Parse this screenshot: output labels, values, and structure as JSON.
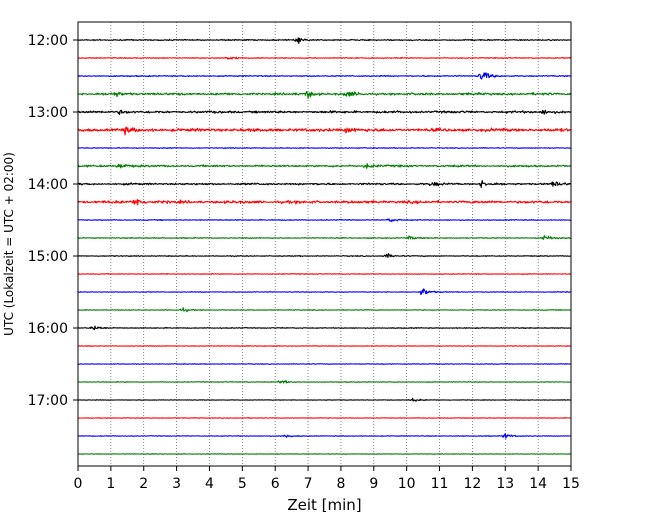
{
  "chart_data": {
    "type": "line",
    "title": "",
    "xlabel": "Zeit  [min]",
    "ylabel": "UTC (Lokalzeit = UTC + 02:00)",
    "xlim": [
      0,
      15
    ],
    "x_ticks": [
      "0",
      "1",
      "2",
      "3",
      "4",
      "5",
      "6",
      "7",
      "8",
      "9",
      "10",
      "11",
      "12",
      "13",
      "14",
      "15"
    ],
    "y_ticks": [
      {
        "time": "12:00",
        "trace_index": 0
      },
      {
        "time": "13:00",
        "trace_index": 4
      },
      {
        "time": "14:00",
        "trace_index": 8
      },
      {
        "time": "15:00",
        "trace_index": 12
      },
      {
        "time": "16:00",
        "trace_index": 16
      },
      {
        "time": "17:00",
        "trace_index": 20
      }
    ],
    "grid": "vertical dotted lines at each minute",
    "trace_colors": [
      "#000000",
      "#ff0000",
      "#0000ff",
      "#008000"
    ],
    "traces": [
      {
        "start": "12:00",
        "color": "#000000",
        "amplitude": 2.0,
        "events": [
          [
            6.7,
            4
          ]
        ]
      },
      {
        "start": "12:15",
        "color": "#ff0000",
        "amplitude": 1.5,
        "events": [
          [
            4.6,
            3
          ]
        ]
      },
      {
        "start": "12:30",
        "color": "#0000ff",
        "amplitude": 2.0,
        "events": [
          [
            12.3,
            10
          ]
        ]
      },
      {
        "start": "12:45",
        "color": "#008000",
        "amplitude": 3.0,
        "events": [
          [
            7.0,
            5
          ],
          [
            1.1,
            4
          ],
          [
            8.2,
            4
          ]
        ]
      },
      {
        "start": "13:00",
        "color": "#000000",
        "amplitude": 3.0,
        "events": [
          [
            14.2,
            4
          ],
          [
            1.3,
            3
          ]
        ]
      },
      {
        "start": "13:15",
        "color": "#ff0000",
        "amplitude": 4.0,
        "events": [
          [
            1.4,
            5
          ],
          [
            8.2,
            4
          ]
        ]
      },
      {
        "start": "13:30",
        "color": "#0000ff",
        "amplitude": 1.5,
        "events": []
      },
      {
        "start": "13:45",
        "color": "#008000",
        "amplitude": 2.5,
        "events": [
          [
            1.3,
            5
          ],
          [
            8.8,
            4
          ]
        ]
      },
      {
        "start": "14:00",
        "color": "#000000",
        "amplitude": 2.5,
        "events": [
          [
            12.3,
            5
          ],
          [
            14.5,
            4
          ],
          [
            10.8,
            3
          ]
        ]
      },
      {
        "start": "14:15",
        "color": "#ff0000",
        "amplitude": 3.5,
        "events": [
          [
            1.8,
            7
          ]
        ]
      },
      {
        "start": "14:30",
        "color": "#0000ff",
        "amplitude": 1.5,
        "events": [
          [
            9.5,
            3
          ]
        ]
      },
      {
        "start": "14:45",
        "color": "#008000",
        "amplitude": 1.5,
        "events": [
          [
            14.2,
            5
          ],
          [
            10.1,
            3
          ]
        ]
      },
      {
        "start": "15:00",
        "color": "#000000",
        "amplitude": 1.5,
        "events": [
          [
            9.4,
            4
          ]
        ]
      },
      {
        "start": "15:15",
        "color": "#ff0000",
        "amplitude": 1.2,
        "events": []
      },
      {
        "start": "15:30",
        "color": "#0000ff",
        "amplitude": 1.2,
        "events": [
          [
            10.5,
            7
          ]
        ]
      },
      {
        "start": "15:45",
        "color": "#008000",
        "amplitude": 1.2,
        "events": [
          [
            3.2,
            3
          ]
        ]
      },
      {
        "start": "16:00",
        "color": "#000000",
        "amplitude": 1.5,
        "events": [
          [
            0.5,
            4
          ]
        ]
      },
      {
        "start": "16:15",
        "color": "#ff0000",
        "amplitude": 1.0,
        "events": []
      },
      {
        "start": "16:30",
        "color": "#0000ff",
        "amplitude": 1.2,
        "events": []
      },
      {
        "start": "16:45",
        "color": "#008000",
        "amplitude": 1.2,
        "events": [
          [
            6.2,
            3
          ]
        ]
      },
      {
        "start": "17:00",
        "color": "#000000",
        "amplitude": 1.0,
        "events": [
          [
            10.2,
            3
          ]
        ]
      },
      {
        "start": "17:15",
        "color": "#ff0000",
        "amplitude": 1.0,
        "events": []
      },
      {
        "start": "17:30",
        "color": "#0000ff",
        "amplitude": 1.2,
        "events": [
          [
            13.0,
            4
          ],
          [
            6.3,
            3
          ]
        ]
      },
      {
        "start": "17:45",
        "color": "#008000",
        "amplitude": 1.0,
        "events": []
      }
    ]
  }
}
